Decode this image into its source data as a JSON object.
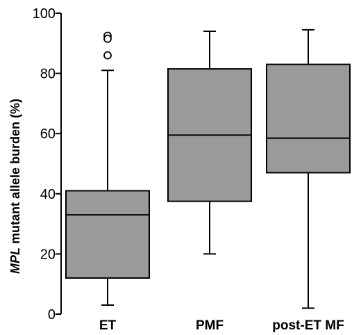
{
  "chart_data": {
    "type": "box",
    "ylabel_prefix": "MPL",
    "ylabel_rest": " mutant allele burden (%)",
    "xlabel": "",
    "ylim": [
      0,
      100
    ],
    "yticks": [
      0,
      20,
      40,
      60,
      80,
      100
    ],
    "grid": false,
    "box_color": "#9a9a9a",
    "categories": [
      "ET",
      "PMF",
      "post-ET MF"
    ],
    "boxes": [
      {
        "category": "ET",
        "min": 3,
        "q1": 12,
        "median": 33,
        "q3": 41,
        "max": 81,
        "outliers": [
          92.5,
          91.5,
          86
        ]
      },
      {
        "category": "PMF",
        "min": 20,
        "q1": 37.5,
        "median": 59.5,
        "q3": 81.5,
        "max": 94,
        "outliers": []
      },
      {
        "category": "post-ET MF",
        "min": 2,
        "q1": 47,
        "median": 58.5,
        "q3": 83,
        "max": 94.5,
        "outliers": []
      }
    ]
  }
}
